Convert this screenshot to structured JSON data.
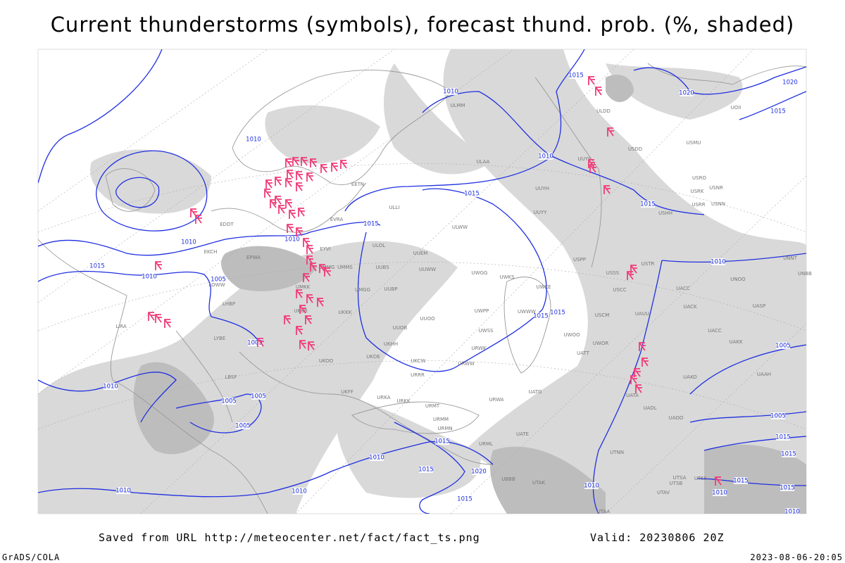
{
  "title": "Current thunderstorms (symbols), forecast thund. prob. (%, shaded)",
  "footer": {
    "source": "Saved from URL http://meteocenter.net/fact/fact_ts.png",
    "valid": "Valid: 20230806 20Z",
    "credit": "GrADS/COLA",
    "timestamp": "2023-08-06-20:05"
  },
  "isobar_labels": [
    "1010",
    "1015",
    "1020",
    "1020",
    "1015",
    "1010",
    "1015",
    "1015",
    "1010",
    "1015",
    "1010",
    "1010",
    "1015",
    "1010",
    "1005",
    "1015",
    "1015",
    "1010",
    "1005",
    "1005",
    "1010",
    "1005",
    "1005",
    "1005",
    "1015",
    "1010",
    "1015",
    "1020",
    "1010",
    "1010",
    "1015",
    "1010",
    "1015",
    "1015",
    "1015",
    "1010",
    "1010",
    "1005",
    "1015"
  ],
  "stations": [
    "ULMM",
    "UOII",
    "ULDD",
    "USDD",
    "USMU",
    "UUYS",
    "ULAA",
    "USRO",
    "UUYH",
    "USRK",
    "USNR",
    "USRR",
    "USNN",
    "USHH",
    "UUYY",
    "ULWW",
    "ULOL",
    "UUEM",
    "USPP",
    "USSS",
    "USTR",
    "UNNT",
    "UNBB",
    "UUWW",
    "UWGG",
    "UWKS",
    "UNOO",
    "USCC",
    "UACC",
    "UWKE",
    "UWPP",
    "UWWW",
    "USCM",
    "UAUU",
    "UACK",
    "UASP",
    "UUOO",
    "UUOB",
    "UWSS",
    "UWOO",
    "UACC",
    "UAKK",
    "UKHH",
    "URWK",
    "UWOR",
    "UATT",
    "UKOO",
    "UKDE",
    "UKCW",
    "URWW",
    "UAKO",
    "UAAH",
    "URRR",
    "UATG",
    "UATA",
    "UKFF",
    "URKA",
    "URKK",
    "URMT",
    "URWA",
    "UAOL",
    "URMM",
    "UATE",
    "URMN",
    "URML",
    "UTNN",
    "UBBB",
    "UTAK",
    "UTSA",
    "UTSB",
    "UTSS",
    "UTAV",
    "UTAA",
    "UAOO",
    "LIRA",
    "LYBE",
    "LBSF",
    "EPWA",
    "LHBP",
    "LOWW",
    "EKCH",
    "EDDT",
    "EVRA",
    "EETN",
    "ULLI",
    "UMMS",
    "UKBB",
    "UUBP",
    "UMGG",
    "UKKK",
    "UUBS",
    "UMMG",
    "EYVI",
    "UMKK"
  ]
}
